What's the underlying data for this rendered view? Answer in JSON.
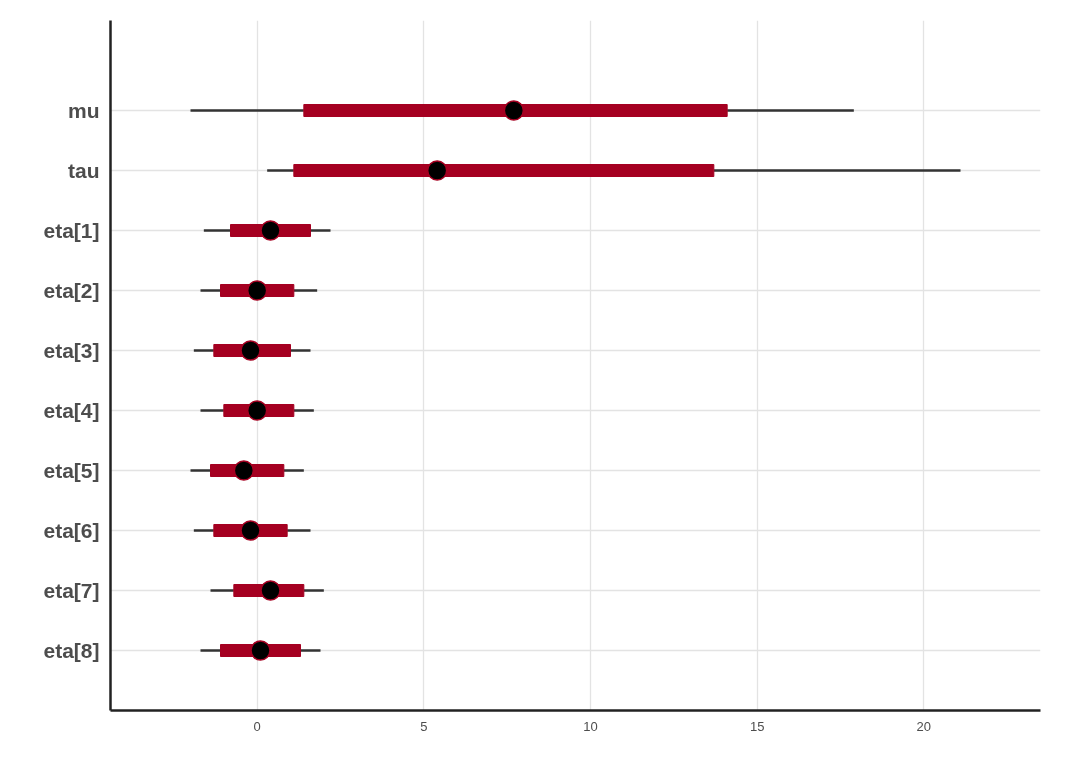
{
  "chart_data": {
    "type": "box",
    "orientation": "horizontal",
    "color": "#a50021",
    "categories": [
      "mu",
      "tau",
      "eta[1]",
      "eta[2]",
      "eta[3]",
      "eta[4]",
      "eta[5]",
      "eta[6]",
      "eta[7]",
      "eta[8]"
    ],
    "boxes": [
      {
        "low": -2.0,
        "q1": 1.4,
        "median": 7.7,
        "q3": 14.1,
        "high": 17.9
      },
      {
        "low": 0.3,
        "q1": 1.1,
        "median": 5.4,
        "q3": 13.7,
        "high": 21.1
      },
      {
        "low": -1.6,
        "q1": -0.8,
        "median": 0.4,
        "q3": 1.6,
        "high": 2.2
      },
      {
        "low": -1.7,
        "q1": -1.1,
        "median": 0.0,
        "q3": 1.1,
        "high": 1.8
      },
      {
        "low": -1.9,
        "q1": -1.3,
        "median": -0.2,
        "q3": 1.0,
        "high": 1.6
      },
      {
        "low": -1.7,
        "q1": -1.0,
        "median": 0.0,
        "q3": 1.1,
        "high": 1.7
      },
      {
        "low": -2.0,
        "q1": -1.4,
        "median": -0.4,
        "q3": 0.8,
        "high": 1.4
      },
      {
        "low": -1.9,
        "q1": -1.3,
        "median": -0.2,
        "q3": 0.9,
        "high": 1.6
      },
      {
        "low": -1.4,
        "q1": -0.7,
        "median": 0.4,
        "q3": 1.4,
        "high": 2.0
      },
      {
        "low": -1.7,
        "q1": -1.1,
        "median": 0.1,
        "q3": 1.3,
        "high": 1.9
      }
    ],
    "xlim": [
      -4.4,
      23.5
    ],
    "xticks": [
      0,
      5,
      10,
      15,
      20
    ],
    "grid": true
  }
}
